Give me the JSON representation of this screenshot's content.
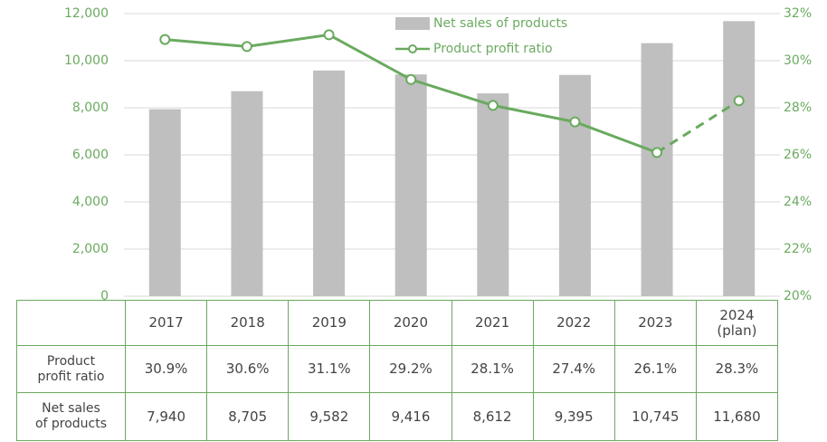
{
  "chart_data": {
    "type": "bar",
    "categories": [
      "2017",
      "2018",
      "2019",
      "2020",
      "2021",
      "2022",
      "2023",
      "2024\n(plan)"
    ],
    "series": [
      {
        "name": "Net sales of products",
        "table_label": "Net sales\nof products",
        "type": "bar",
        "color": "#bfbfbf",
        "axis": "y",
        "values": [
          7940,
          8705,
          9582,
          9416,
          8612,
          9395,
          10745,
          11680
        ],
        "value_labels": [
          "7,940",
          "8,705",
          "9,582",
          "9,416",
          "8,612",
          "9,395",
          "10,745",
          "11,680"
        ]
      },
      {
        "name": "Product profit ratio",
        "table_label": "Product\nprofit ratio",
        "type": "line",
        "color": "#6aaa5f",
        "axis": "y2",
        "dashed_segments": [
          6
        ],
        "values": [
          30.9,
          30.6,
          31.1,
          29.2,
          28.1,
          27.4,
          26.1,
          28.3
        ],
        "value_labels": [
          "30.9%",
          "30.6%",
          "31.1%",
          "29.2%",
          "28.1%",
          "27.4%",
          "26.1%",
          "28.3%"
        ]
      }
    ],
    "ylim": [
      0,
      12000
    ],
    "yticks": [
      0,
      {
        "value": 2000,
        "label": "2,000"
      },
      {
        "value": 4000,
        "label": "4,000"
      },
      {
        "value": 6000,
        "label": "6,000"
      },
      {
        "value": 8000,
        "label": "8,000"
      },
      {
        "value": 10000,
        "label": "10,000"
      },
      {
        "value": 12000,
        "label": "12,000"
      }
    ],
    "y2lim": [
      20,
      32
    ],
    "y2ticks": [
      {
        "value": 20,
        "label": "20%"
      },
      {
        "value": 22,
        "label": "22%"
      },
      {
        "value": 24,
        "label": "24%"
      },
      {
        "value": 26,
        "label": "26%"
      },
      {
        "value": 28,
        "label": "28%"
      },
      {
        "value": 30,
        "label": "30%"
      },
      {
        "value": 32,
        "label": "32%"
      }
    ],
    "grid": true,
    "table_order": [
      1,
      0
    ]
  }
}
